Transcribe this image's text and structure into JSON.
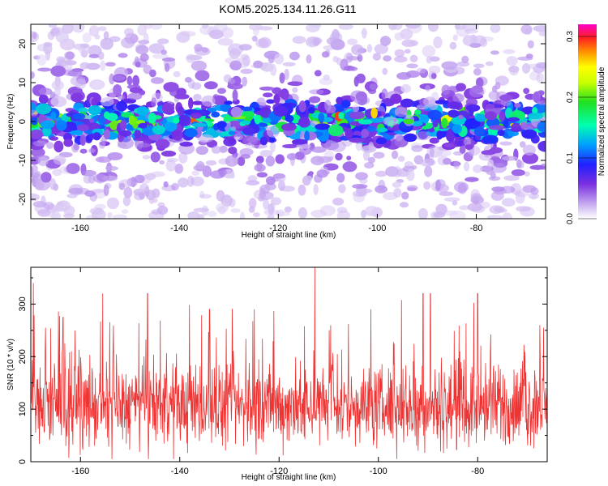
{
  "title": "KOM5.2025.134.11.26.G11",
  "chart_data": [
    {
      "type": "heatmap",
      "xlabel": "Height of straight line (km)",
      "ylabel": "Frequency (Hz)",
      "xlim": [
        -170,
        -66
      ],
      "ylim": [
        -25,
        25
      ],
      "xticks": [
        -160,
        -140,
        -120,
        -100,
        -80
      ],
      "yticks": [
        -20,
        -10,
        0,
        10,
        20
      ],
      "colorbar": {
        "label": "Normalized spectral amplitude",
        "range": [
          0.0,
          0.32
        ],
        "ticks": [
          0.0,
          0.1,
          0.2,
          0.3
        ],
        "tick_labels": [
          "0.0",
          "0.1",
          "0.2",
          "0.3"
        ]
      },
      "band": {
        "center_hz": 0,
        "halfwidth_hz": 4,
        "peak_value": 0.3
      },
      "grid": false
    },
    {
      "type": "line",
      "xlabel": "Height of straight line (km)",
      "ylabel": "SNR (10 * v/v)",
      "xlim": [
        -170,
        -66
      ],
      "ylim": [
        0,
        370
      ],
      "xticks": [
        -160,
        -140,
        -120,
        -100,
        -80
      ],
      "yticks": [
        0,
        100,
        200,
        300
      ],
      "line_color": "#ee3333",
      "typical_range": [
        40,
        180
      ],
      "mean": 105,
      "peaks": [
        {
          "x": -169.5,
          "y": 340
        },
        {
          "x": -163.5,
          "y": 275
        },
        {
          "x": -155.5,
          "y": 320
        },
        {
          "x": -146.5,
          "y": 320
        },
        {
          "x": -134,
          "y": 290
        },
        {
          "x": -125,
          "y": 290
        },
        {
          "x": -112.8,
          "y": 370
        },
        {
          "x": -101.5,
          "y": 290
        },
        {
          "x": -91,
          "y": 320
        },
        {
          "x": -89.5,
          "y": 320
        },
        {
          "x": -80,
          "y": 320
        },
        {
          "x": -67.5,
          "y": 260
        }
      ],
      "grid": false
    }
  ]
}
